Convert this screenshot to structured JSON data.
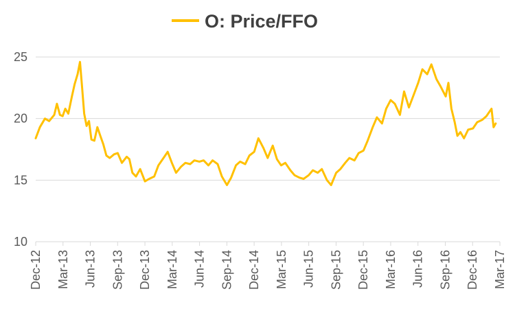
{
  "chart_data": {
    "type": "line",
    "title": "O: Price/FFO",
    "xlabel": "",
    "ylabel": "",
    "ylim": [
      10,
      25
    ],
    "yticks": [
      10,
      15,
      20,
      25
    ],
    "xticks": [
      "Dec-12",
      "Mar-13",
      "Jun-13",
      "Sep-13",
      "Dec-13",
      "Mar-14",
      "Jun-14",
      "Sep-14",
      "Dec-14",
      "Mar-15",
      "Jun-15",
      "Sep-15",
      "Dec-15",
      "Mar-16",
      "Jun-16",
      "Sep-16",
      "Dec-16",
      "Mar-17"
    ],
    "xrange": [
      "2012-12-01",
      "2017-03-01"
    ],
    "grid": true,
    "legend": "top",
    "series": [
      {
        "name": "O: Price/FFO",
        "color": "#FFC000",
        "points": [
          [
            "2012-12-01",
            18.4
          ],
          [
            "2012-12-15",
            19.3
          ],
          [
            "2013-01-01",
            20.0
          ],
          [
            "2013-01-15",
            19.8
          ],
          [
            "2013-02-01",
            20.3
          ],
          [
            "2013-02-10",
            21.2
          ],
          [
            "2013-02-20",
            20.3
          ],
          [
            "2013-03-01",
            20.2
          ],
          [
            "2013-03-10",
            20.8
          ],
          [
            "2013-03-20",
            20.4
          ],
          [
            "2013-04-01",
            21.8
          ],
          [
            "2013-04-10",
            22.8
          ],
          [
            "2013-04-20",
            23.6
          ],
          [
            "2013-04-28",
            24.6
          ],
          [
            "2013-05-05",
            22.5
          ],
          [
            "2013-05-12",
            20.4
          ],
          [
            "2013-05-20",
            19.4
          ],
          [
            "2013-05-28",
            19.8
          ],
          [
            "2013-06-05",
            18.3
          ],
          [
            "2013-06-15",
            18.2
          ],
          [
            "2013-06-25",
            19.3
          ],
          [
            "2013-07-05",
            18.6
          ],
          [
            "2013-07-15",
            17.9
          ],
          [
            "2013-07-25",
            17.0
          ],
          [
            "2013-08-05",
            16.8
          ],
          [
            "2013-08-20",
            17.1
          ],
          [
            "2013-09-01",
            17.2
          ],
          [
            "2013-09-15",
            16.4
          ],
          [
            "2013-10-01",
            16.9
          ],
          [
            "2013-10-10",
            16.7
          ],
          [
            "2013-10-20",
            15.6
          ],
          [
            "2013-11-01",
            15.3
          ],
          [
            "2013-11-15",
            15.9
          ],
          [
            "2013-12-01",
            14.9
          ],
          [
            "2013-12-15",
            15.1
          ],
          [
            "2014-01-01",
            15.3
          ],
          [
            "2014-01-15",
            16.2
          ],
          [
            "2014-02-01",
            16.8
          ],
          [
            "2014-02-15",
            17.3
          ],
          [
            "2014-03-01",
            16.4
          ],
          [
            "2014-03-15",
            15.6
          ],
          [
            "2014-04-01",
            16.1
          ],
          [
            "2014-04-15",
            16.4
          ],
          [
            "2014-05-01",
            16.3
          ],
          [
            "2014-05-15",
            16.6
          ],
          [
            "2014-06-01",
            16.5
          ],
          [
            "2014-06-15",
            16.6
          ],
          [
            "2014-07-01",
            16.2
          ],
          [
            "2014-07-15",
            16.6
          ],
          [
            "2014-08-01",
            16.3
          ],
          [
            "2014-08-15",
            15.3
          ],
          [
            "2014-09-01",
            14.6
          ],
          [
            "2014-09-15",
            15.2
          ],
          [
            "2014-10-01",
            16.2
          ],
          [
            "2014-10-15",
            16.5
          ],
          [
            "2014-11-01",
            16.3
          ],
          [
            "2014-11-15",
            17.0
          ],
          [
            "2014-12-01",
            17.3
          ],
          [
            "2014-12-15",
            18.4
          ],
          [
            "2015-01-01",
            17.6
          ],
          [
            "2015-01-15",
            16.8
          ],
          [
            "2015-02-01",
            17.8
          ],
          [
            "2015-02-15",
            16.7
          ],
          [
            "2015-03-01",
            16.2
          ],
          [
            "2015-03-15",
            16.4
          ],
          [
            "2015-04-01",
            15.8
          ],
          [
            "2015-04-15",
            15.4
          ],
          [
            "2015-05-01",
            15.2
          ],
          [
            "2015-05-15",
            15.1
          ],
          [
            "2015-06-01",
            15.4
          ],
          [
            "2015-06-15",
            15.8
          ],
          [
            "2015-07-01",
            15.6
          ],
          [
            "2015-07-15",
            15.9
          ],
          [
            "2015-08-01",
            15.0
          ],
          [
            "2015-08-15",
            14.6
          ],
          [
            "2015-09-01",
            15.6
          ],
          [
            "2015-09-15",
            15.9
          ],
          [
            "2015-10-01",
            16.4
          ],
          [
            "2015-10-15",
            16.8
          ],
          [
            "2015-11-01",
            16.6
          ],
          [
            "2015-11-15",
            17.2
          ],
          [
            "2015-12-01",
            17.4
          ],
          [
            "2015-12-15",
            18.2
          ],
          [
            "2016-01-01",
            19.3
          ],
          [
            "2016-01-15",
            20.1
          ],
          [
            "2016-02-01",
            19.6
          ],
          [
            "2016-02-15",
            20.8
          ],
          [
            "2016-03-01",
            21.5
          ],
          [
            "2016-03-15",
            21.2
          ],
          [
            "2016-04-01",
            20.3
          ],
          [
            "2016-04-15",
            22.2
          ],
          [
            "2016-05-01",
            20.9
          ],
          [
            "2016-05-15",
            21.8
          ],
          [
            "2016-06-01",
            22.9
          ],
          [
            "2016-06-15",
            24.0
          ],
          [
            "2016-07-01",
            23.6
          ],
          [
            "2016-07-15",
            24.4
          ],
          [
            "2016-08-01",
            23.2
          ],
          [
            "2016-08-15",
            22.6
          ],
          [
            "2016-09-01",
            21.8
          ],
          [
            "2016-09-10",
            22.9
          ],
          [
            "2016-09-20",
            20.8
          ],
          [
            "2016-10-01",
            19.7
          ],
          [
            "2016-10-10",
            18.6
          ],
          [
            "2016-10-20",
            18.9
          ],
          [
            "2016-11-01",
            18.4
          ],
          [
            "2016-11-15",
            19.1
          ],
          [
            "2016-12-01",
            19.2
          ],
          [
            "2016-12-15",
            19.7
          ],
          [
            "2017-01-01",
            19.9
          ],
          [
            "2017-01-15",
            20.2
          ],
          [
            "2017-02-01",
            20.8
          ],
          [
            "2017-02-08",
            19.3
          ],
          [
            "2017-02-15",
            19.6
          ]
        ]
      }
    ]
  }
}
